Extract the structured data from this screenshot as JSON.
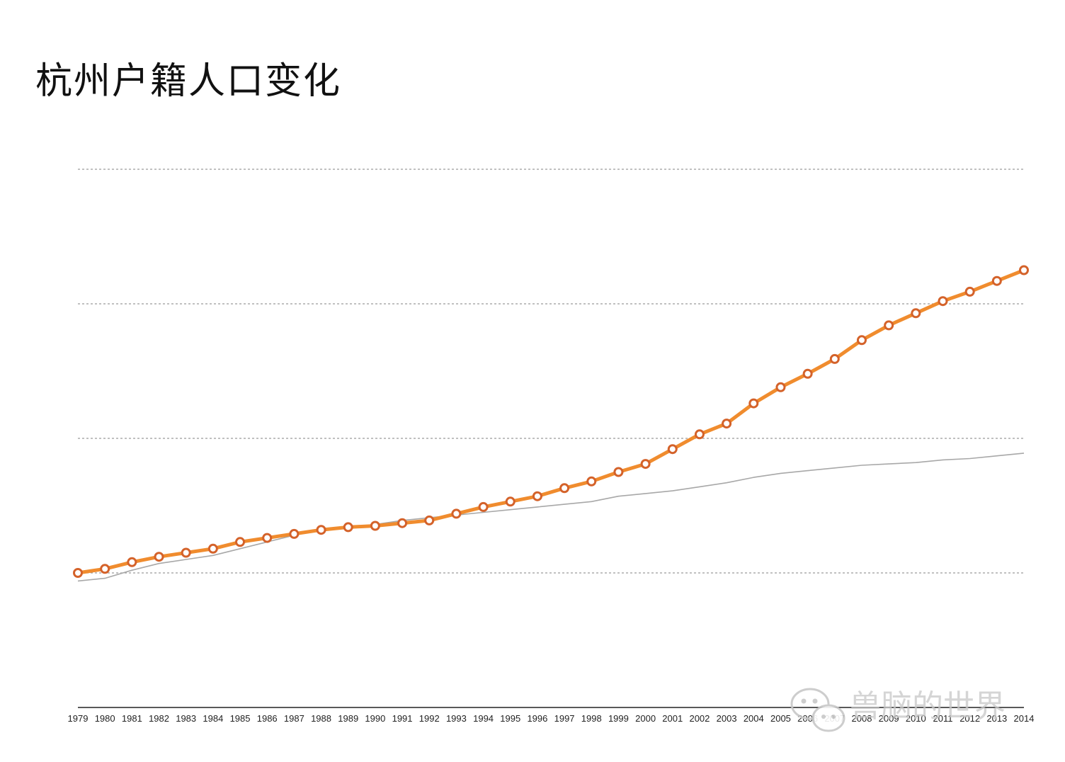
{
  "title": "杭州户籍人口变化",
  "watermark": {
    "text": "兽脑的世界",
    "icon": "wechat-icon"
  },
  "chart_data": {
    "type": "line",
    "title": "杭州户籍人口变化",
    "xlabel": "",
    "ylabel": "",
    "ylim": [
      0,
      4
    ],
    "yticks": [
      1,
      2,
      3,
      4
    ],
    "grid": true,
    "legend": "none",
    "categories": [
      "1979",
      "1980",
      "1981",
      "1982",
      "1983",
      "1984",
      "1985",
      "1986",
      "1987",
      "1988",
      "1989",
      "1990",
      "1991",
      "1992",
      "1993",
      "1994",
      "1995",
      "1996",
      "1997",
      "1998",
      "1999",
      "2000",
      "2001",
      "2002",
      "2003",
      "2004",
      "2005",
      "2006",
      "2007",
      "2008",
      "2009",
      "2010",
      "2011",
      "2012",
      "2013",
      "2014"
    ],
    "series": [
      {
        "color": "#f08c2e",
        "marker_color": "#d4622a",
        "values": [
          1.0,
          1.03,
          1.08,
          1.12,
          1.15,
          1.18,
          1.23,
          1.26,
          1.29,
          1.32,
          1.34,
          1.35,
          1.37,
          1.39,
          1.44,
          1.49,
          1.53,
          1.57,
          1.63,
          1.68,
          1.75,
          1.81,
          1.92,
          2.03,
          2.11,
          2.26,
          2.38,
          2.48,
          2.59,
          2.73,
          2.84,
          2.93,
          3.02,
          3.09,
          3.17,
          3.25
        ]
      },
      {
        "color": "#a8a8a8",
        "values": [
          0.94,
          0.96,
          1.02,
          1.07,
          1.1,
          1.13,
          1.18,
          1.23,
          1.28,
          1.32,
          1.34,
          1.36,
          1.39,
          1.41,
          1.43,
          1.45,
          1.47,
          1.49,
          1.51,
          1.53,
          1.57,
          1.59,
          1.61,
          1.64,
          1.67,
          1.71,
          1.74,
          1.76,
          1.78,
          1.8,
          1.81,
          1.82,
          1.84,
          1.85,
          1.87,
          1.89
        ]
      }
    ]
  }
}
